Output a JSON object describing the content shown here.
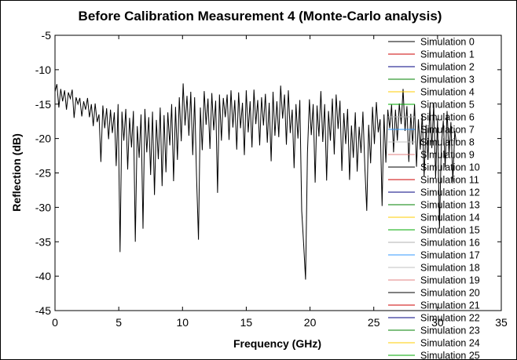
{
  "chart_data": {
    "type": "line",
    "title": "Before Calibration Measurement 4 (Monte-Carlo analysis)",
    "xlabel": "Frequency (GHz)",
    "ylabel": "Reflection (dB)",
    "xlim": [
      0,
      35
    ],
    "ylim": [
      -45,
      -5
    ],
    "xticks": [
      0,
      5,
      10,
      15,
      20,
      25,
      30,
      35
    ],
    "yticks": [
      -5,
      -10,
      -15,
      -20,
      -25,
      -30,
      -35,
      -40,
      -45
    ],
    "x_visible_max": 31.5,
    "grid": false,
    "legend_position": "right (overlapping plot)",
    "series": [
      {
        "name": "Simulation 0",
        "color": "#000000",
        "points": [
          [
            0.0,
            -13.2
          ],
          [
            0.15,
            -12.1
          ],
          [
            0.3,
            -15.5
          ],
          [
            0.45,
            -12.8
          ],
          [
            0.6,
            -14.6
          ],
          [
            0.75,
            -13.0
          ],
          [
            0.9,
            -15.8
          ],
          [
            1.05,
            -13.3
          ],
          [
            1.2,
            -14.2
          ],
          [
            1.35,
            -12.9
          ],
          [
            1.5,
            -17.0
          ],
          [
            1.65,
            -14.0
          ],
          [
            1.8,
            -15.0
          ],
          [
            1.95,
            -14.1
          ],
          [
            2.1,
            -16.8
          ],
          [
            2.25,
            -14.6
          ],
          [
            2.4,
            -15.8
          ],
          [
            2.55,
            -14.1
          ],
          [
            2.7,
            -16.9
          ],
          [
            2.85,
            -15.0
          ],
          [
            3.0,
            -18.2
          ],
          [
            3.15,
            -14.9
          ],
          [
            3.3,
            -17.6
          ],
          [
            3.45,
            -16.5
          ],
          [
            3.6,
            -23.4
          ],
          [
            3.75,
            -15.2
          ],
          [
            3.9,
            -18.5
          ],
          [
            4.05,
            -15.6
          ],
          [
            4.2,
            -20.1
          ],
          [
            4.35,
            -15.8
          ],
          [
            4.5,
            -19.2
          ],
          [
            4.65,
            -16.2
          ],
          [
            4.8,
            -24.0
          ],
          [
            4.95,
            -15.0
          ],
          [
            5.1,
            -36.5
          ],
          [
            5.25,
            -16.1
          ],
          [
            5.4,
            -20.3
          ],
          [
            5.55,
            -15.7
          ],
          [
            5.7,
            -24.5
          ],
          [
            5.85,
            -17.0
          ],
          [
            6.0,
            -21.3
          ],
          [
            6.15,
            -16.0
          ],
          [
            6.3,
            -35.0
          ],
          [
            6.45,
            -18.2
          ],
          [
            6.6,
            -22.8
          ],
          [
            6.75,
            -16.5
          ],
          [
            6.9,
            -33.1
          ],
          [
            7.05,
            -15.7
          ],
          [
            7.2,
            -22.0
          ],
          [
            7.35,
            -16.9
          ],
          [
            7.5,
            -25.3
          ],
          [
            7.65,
            -16.1
          ],
          [
            7.8,
            -28.2
          ],
          [
            7.95,
            -17.3
          ],
          [
            8.1,
            -23.0
          ],
          [
            8.25,
            -15.5
          ],
          [
            8.4,
            -26.9
          ],
          [
            8.55,
            -16.6
          ],
          [
            8.7,
            -24.9
          ],
          [
            8.85,
            -16.2
          ],
          [
            9.0,
            -21.0
          ],
          [
            9.15,
            -15.0
          ],
          [
            9.3,
            -26.2
          ],
          [
            9.45,
            -15.4
          ],
          [
            9.6,
            -23.1
          ],
          [
            9.75,
            -14.0
          ],
          [
            9.9,
            -20.4
          ],
          [
            10.05,
            -12.0
          ],
          [
            10.2,
            -18.1
          ],
          [
            10.35,
            -13.8
          ],
          [
            10.5,
            -19.6
          ],
          [
            10.65,
            -13.2
          ],
          [
            10.8,
            -22.4
          ],
          [
            10.95,
            -14.0
          ],
          [
            11.1,
            -25.3
          ],
          [
            11.25,
            -34.7
          ],
          [
            11.4,
            -15.5
          ],
          [
            11.55,
            -21.7
          ],
          [
            11.7,
            -13.1
          ],
          [
            11.85,
            -18.0
          ],
          [
            12.0,
            -14.2
          ],
          [
            12.15,
            -21.5
          ],
          [
            12.3,
            -13.4
          ],
          [
            12.45,
            -18.8
          ],
          [
            12.6,
            -14.5
          ],
          [
            12.75,
            -27.9
          ],
          [
            12.9,
            -13.6
          ],
          [
            13.05,
            -20.3
          ],
          [
            13.2,
            -14.1
          ],
          [
            13.35,
            -16.9
          ],
          [
            13.5,
            -13.6
          ],
          [
            13.65,
            -20.2
          ],
          [
            13.8,
            -13.0
          ],
          [
            13.95,
            -18.4
          ],
          [
            14.1,
            -14.4
          ],
          [
            14.25,
            -21.6
          ],
          [
            14.4,
            -13.3
          ],
          [
            14.55,
            -18.5
          ],
          [
            14.7,
            -14.8
          ],
          [
            14.85,
            -22.4
          ],
          [
            15.0,
            -13.0
          ],
          [
            15.15,
            -19.1
          ],
          [
            15.3,
            -14.6
          ],
          [
            15.45,
            -21.3
          ],
          [
            15.6,
            -12.9
          ],
          [
            15.75,
            -17.9
          ],
          [
            15.9,
            -14.4
          ],
          [
            16.05,
            -21.0
          ],
          [
            16.2,
            -14.0
          ],
          [
            16.35,
            -18.1
          ],
          [
            16.5,
            -13.5
          ],
          [
            16.65,
            -20.6
          ],
          [
            16.8,
            -14.8
          ],
          [
            16.95,
            -23.3
          ],
          [
            17.1,
            -13.2
          ],
          [
            17.25,
            -19.6
          ],
          [
            17.4,
            -14.6
          ],
          [
            17.55,
            -19.8
          ],
          [
            17.7,
            -12.3
          ],
          [
            17.85,
            -17.1
          ],
          [
            18.0,
            -13.6
          ],
          [
            18.15,
            -20.9
          ],
          [
            18.3,
            -13.0
          ],
          [
            18.45,
            -19.2
          ],
          [
            18.6,
            -15.8
          ],
          [
            18.75,
            -24.3
          ],
          [
            18.9,
            -15.0
          ],
          [
            19.05,
            -20.0
          ],
          [
            19.2,
            -14.4
          ],
          [
            19.35,
            -30.5
          ],
          [
            19.5,
            -35.4
          ],
          [
            19.65,
            -40.5
          ],
          [
            19.8,
            -22.1
          ],
          [
            19.95,
            -14.3
          ],
          [
            20.1,
            -19.5
          ],
          [
            20.25,
            -15.0
          ],
          [
            20.4,
            -26.4
          ],
          [
            20.55,
            -15.2
          ],
          [
            20.7,
            -19.7
          ],
          [
            20.85,
            -13.1
          ],
          [
            21.0,
            -20.5
          ],
          [
            21.15,
            -15.0
          ],
          [
            21.3,
            -26.1
          ],
          [
            21.45,
            -16.0
          ],
          [
            21.6,
            -20.3
          ],
          [
            21.75,
            -14.2
          ],
          [
            21.9,
            -22.3
          ],
          [
            22.05,
            -13.6
          ],
          [
            22.2,
            -18.6
          ],
          [
            22.35,
            -14.5
          ],
          [
            22.5,
            -24.7
          ],
          [
            22.65,
            -16.3
          ],
          [
            22.8,
            -20.8
          ],
          [
            22.95,
            -15.7
          ],
          [
            23.1,
            -26.0
          ],
          [
            23.25,
            -18.1
          ],
          [
            23.4,
            -22.8
          ],
          [
            23.55,
            -16.2
          ],
          [
            23.7,
            -24.8
          ],
          [
            23.85,
            -18.3
          ],
          [
            24.0,
            -22.1
          ],
          [
            24.15,
            -16.1
          ],
          [
            24.3,
            -24.3
          ],
          [
            24.45,
            -30.5
          ],
          [
            24.6,
            -18.0
          ],
          [
            24.75,
            -23.6
          ],
          [
            24.9,
            -15.4
          ],
          [
            25.05,
            -20.8
          ],
          [
            25.2,
            -14.7
          ],
          [
            25.35,
            -19.1
          ],
          [
            25.5,
            -17.2
          ],
          [
            25.65,
            -29.8
          ],
          [
            25.8,
            -16.5
          ],
          [
            25.95,
            -23.5
          ],
          [
            26.1,
            -15.8
          ],
          [
            26.25,
            -18.5
          ],
          [
            26.4,
            -15.1
          ],
          [
            26.55,
            -22.0
          ],
          [
            26.7,
            -15.8
          ],
          [
            26.85,
            -20.3
          ],
          [
            27.0,
            -14.9
          ],
          [
            27.15,
            -17.9
          ],
          [
            27.3,
            -12.8
          ],
          [
            27.45,
            -18.9
          ],
          [
            27.6,
            -15.3
          ],
          [
            27.75,
            -23.4
          ],
          [
            27.9,
            -16.4
          ],
          [
            28.05,
            -20.9
          ],
          [
            28.2,
            -15.0
          ],
          [
            28.35,
            -24.1
          ],
          [
            28.5,
            -17.2
          ],
          [
            28.65,
            -21.6
          ],
          [
            28.8,
            -16.5
          ],
          [
            28.95,
            -25.5
          ],
          [
            29.1,
            -18.0
          ],
          [
            29.25,
            -23.1
          ],
          [
            29.4,
            -15.3
          ],
          [
            29.55,
            -21.4
          ],
          [
            29.7,
            -14.9
          ],
          [
            29.85,
            -25.7
          ],
          [
            30.0,
            -17.1
          ],
          [
            30.15,
            -33.1
          ],
          [
            30.3,
            -21.0
          ],
          [
            30.45,
            -17.4
          ],
          [
            30.6,
            -24.2
          ],
          [
            30.75,
            -16.0
          ],
          [
            30.9,
            -22.4
          ],
          [
            31.05,
            -17.6
          ],
          [
            31.2,
            -26.3
          ],
          [
            31.35,
            -18.9
          ],
          [
            31.5,
            -21.0
          ]
        ]
      },
      {
        "name": "Simulation 1",
        "color": "#cc0000"
      },
      {
        "name": "Simulation 2",
        "color": "#000080"
      },
      {
        "name": "Simulation 3",
        "color": "#008000"
      },
      {
        "name": "Simulation 4",
        "color": "#ffcc00"
      },
      {
        "name": "Simulation 5",
        "color": "#00aa00"
      },
      {
        "name": "Simulation 6",
        "color": "#b0b0b0"
      },
      {
        "name": "Simulation 7",
        "color": "#3399ff"
      },
      {
        "name": "Simulation 8",
        "color": "#c0c0c0"
      },
      {
        "name": "Simulation 9",
        "color": "#e08080"
      },
      {
        "name": "Simulation 10",
        "color": "#000000"
      },
      {
        "name": "Simulation 11",
        "color": "#cc0000"
      },
      {
        "name": "Simulation 12",
        "color": "#000080"
      },
      {
        "name": "Simulation 13",
        "color": "#008000"
      },
      {
        "name": "Simulation 14",
        "color": "#ffcc00"
      },
      {
        "name": "Simulation 15",
        "color": "#00aa00"
      },
      {
        "name": "Simulation 16",
        "color": "#b0b0b0"
      },
      {
        "name": "Simulation 17",
        "color": "#3399ff"
      },
      {
        "name": "Simulation 18",
        "color": "#c0c0c0"
      },
      {
        "name": "Simulation 19",
        "color": "#e08080"
      },
      {
        "name": "Simulation 20",
        "color": "#000000"
      },
      {
        "name": "Simulation 21",
        "color": "#cc0000"
      },
      {
        "name": "Simulation 22",
        "color": "#000080"
      },
      {
        "name": "Simulation 23",
        "color": "#008000"
      },
      {
        "name": "Simulation 24",
        "color": "#ffcc00"
      },
      {
        "name": "Simulation 25",
        "color": "#00aa00"
      }
    ]
  }
}
